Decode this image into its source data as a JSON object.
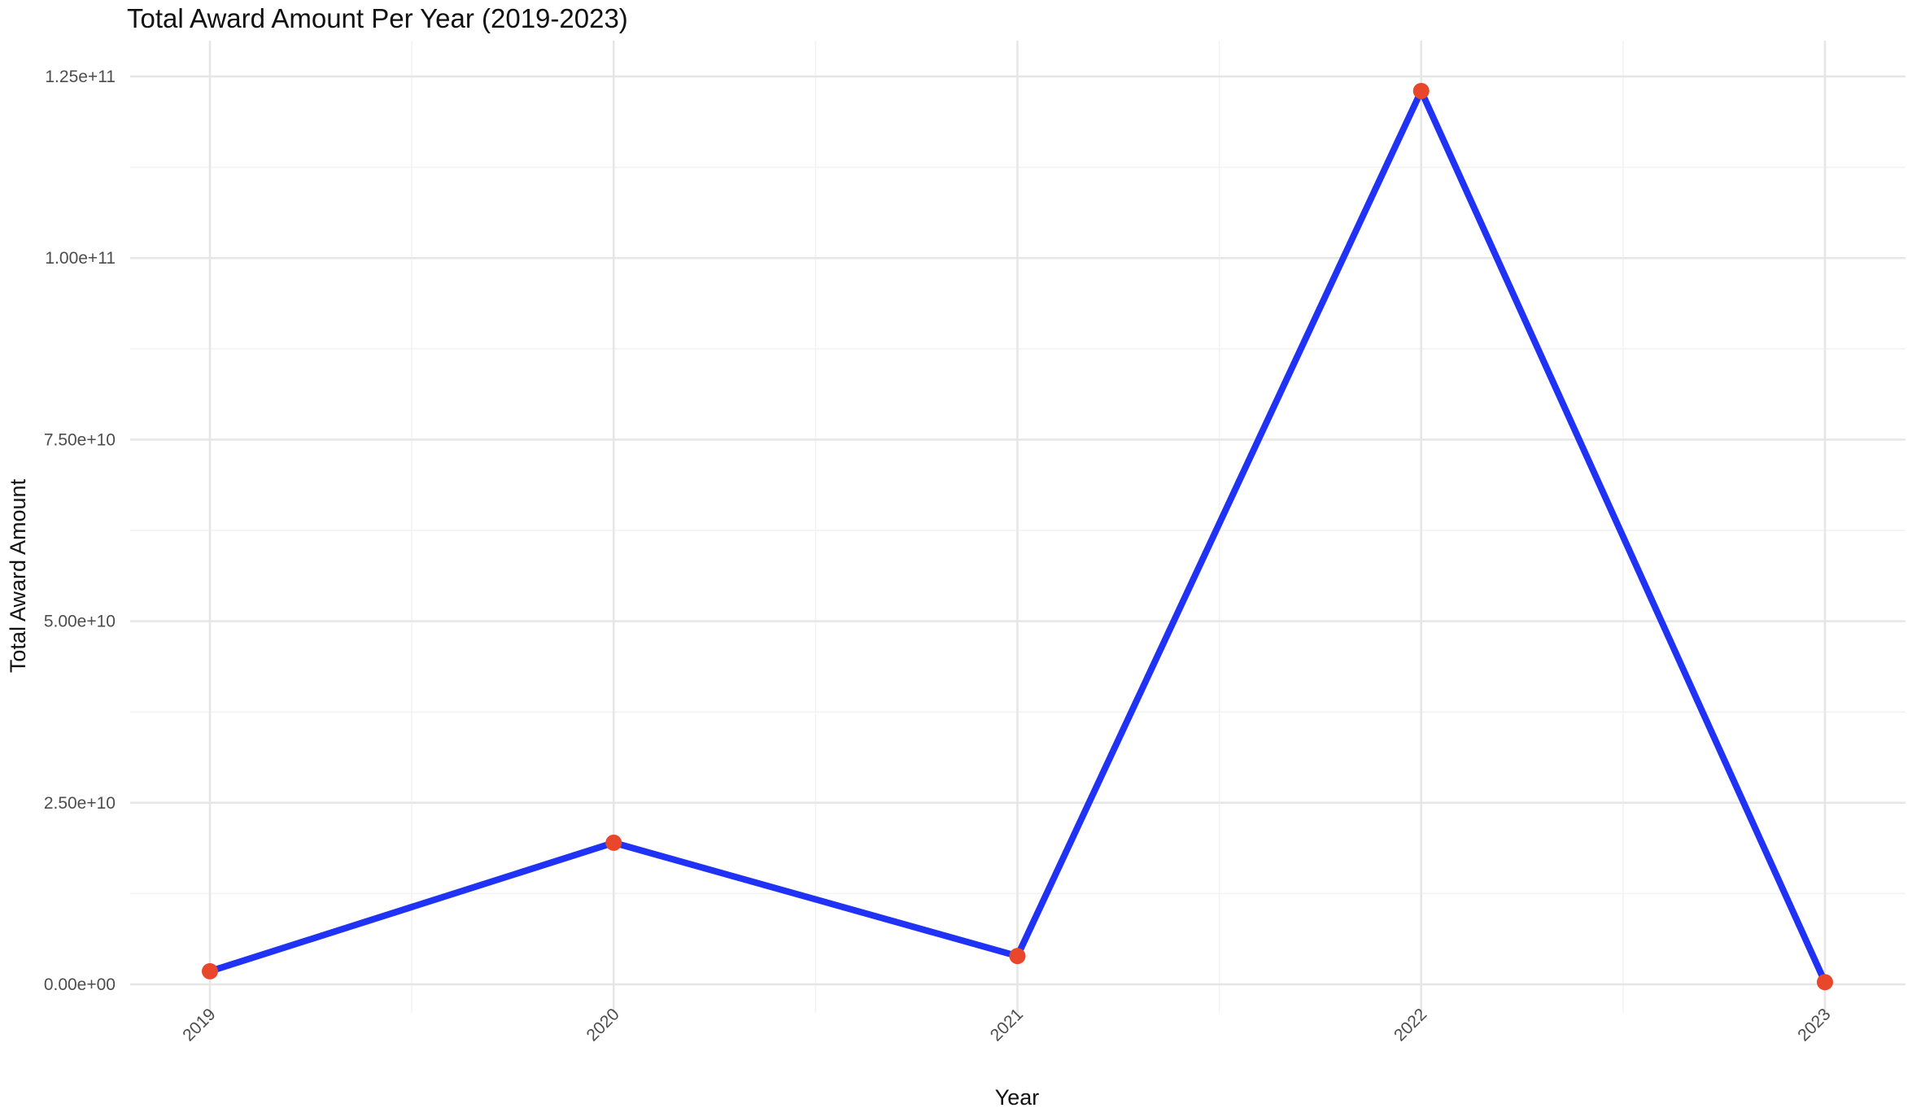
{
  "chart_data": {
    "type": "line",
    "title": "Total Award Amount Per Year (2019-2023)",
    "xlabel": "Year",
    "ylabel": "Total Award Amount",
    "categories": [
      "2019",
      "2020",
      "2021",
      "2022",
      "2023"
    ],
    "values": [
      1800000000,
      19500000000,
      3900000000,
      123000000000,
      300000000
    ],
    "ylim": [
      -6000000000,
      133000000000
    ],
    "yticks": [
      0,
      25000000000,
      50000000000,
      75000000000,
      100000000000,
      125000000000
    ],
    "ytick_labels": [
      "0.00e+00",
      "2.50e+10",
      "5.00e+10",
      "7.50e+10",
      "1.00e+11",
      "1.25e+11"
    ],
    "xtick_rotation_deg": 45,
    "grid": true,
    "legend": "none",
    "colors": {
      "line": "#1f32f5",
      "points": "#e8472b",
      "grid_major": "#e6e6e6",
      "grid_minor": "#f2f2f2",
      "text": "#111111",
      "tick_text": "#4d4d4d"
    }
  }
}
